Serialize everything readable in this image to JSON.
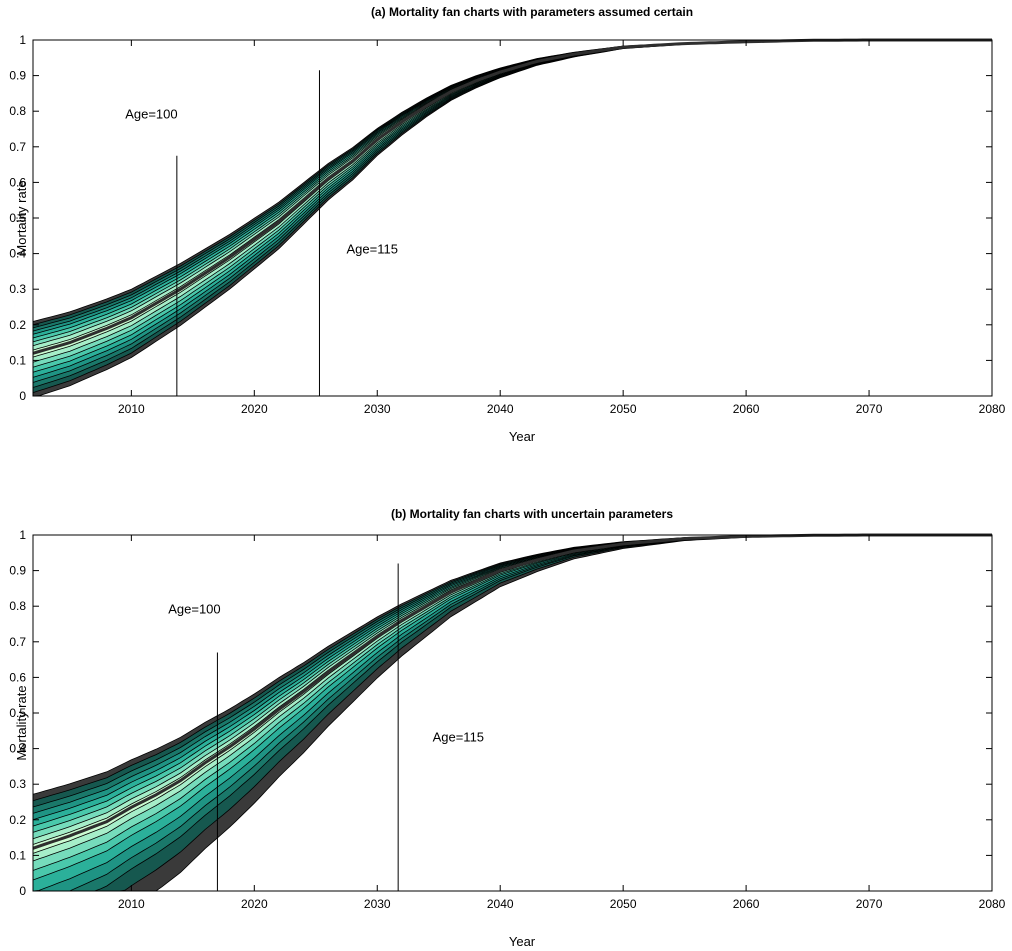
{
  "chart_data": [
    {
      "type": "area",
      "title": "(a) Mortality fan charts with parameters assumed certain",
      "xlabel": "Year",
      "ylabel": "Mortality rate",
      "xlim": [
        2002,
        2080
      ],
      "ylim": [
        0,
        1
      ],
      "xticks": [
        2010,
        2020,
        2030,
        2040,
        2050,
        2060,
        2070,
        2080
      ],
      "yticks": [
        0,
        0.1,
        0.2,
        0.3,
        0.4,
        0.5,
        0.6,
        0.7,
        0.8,
        0.9,
        1
      ],
      "grid": false,
      "median": {
        "x": [
          2002,
          2005,
          2008,
          2010,
          2012,
          2014,
          2016,
          2018,
          2020,
          2022,
          2024,
          2026,
          2028,
          2030,
          2032,
          2034,
          2036,
          2038,
          2040,
          2043,
          2046,
          2050,
          2055,
          2060,
          2065,
          2070,
          2080
        ],
        "y": [
          0.12,
          0.15,
          0.19,
          0.22,
          0.26,
          0.3,
          0.345,
          0.39,
          0.44,
          0.49,
          0.55,
          0.61,
          0.66,
          0.72,
          0.77,
          0.815,
          0.855,
          0.885,
          0.91,
          0.94,
          0.96,
          0.98,
          0.99,
          0.995,
          0.999,
          1.0,
          1.0
        ]
      },
      "bands": {
        "upper_offsets": [
          0.005,
          0.012,
          0.018,
          0.024,
          0.03,
          0.035,
          0.04,
          0.045,
          0.05
        ],
        "lower_offsets": [
          0.006,
          0.014,
          0.022,
          0.03,
          0.038,
          0.046,
          0.054,
          0.062,
          0.07
        ],
        "colors": [
          "#3a3a3a",
          "#16584f",
          "#1a786a",
          "#1f9484",
          "#2bb09a",
          "#4ac8ab",
          "#76dcbc",
          "#a6eec9",
          "#ccfcd2"
        ]
      },
      "annotations": [
        {
          "text": "Age=100",
          "line_x": 2013.7,
          "line_ymin": 0,
          "line_ymax": 0.675,
          "label_x": 2009.5,
          "label_y": 0.78
        },
        {
          "text": "Age=115",
          "line_x": 2025.3,
          "line_ymin": 0,
          "line_ymax": 0.915,
          "label_x": 2027.5,
          "label_y": 0.4
        }
      ]
    },
    {
      "type": "area",
      "title": "(b) Mortality fan charts with uncertain parameters",
      "xlabel": "Year",
      "ylabel": "Mortality rate",
      "xlim": [
        2002,
        2080
      ],
      "ylim": [
        0,
        1
      ],
      "xticks": [
        2010,
        2020,
        2030,
        2040,
        2050,
        2060,
        2070,
        2080
      ],
      "yticks": [
        0,
        0.1,
        0.2,
        0.3,
        0.4,
        0.5,
        0.6,
        0.7,
        0.8,
        0.9,
        1
      ],
      "grid": false,
      "median": {
        "x": [
          2002,
          2005,
          2008,
          2010,
          2012,
          2014,
          2016,
          2018,
          2020,
          2022,
          2024,
          2026,
          2028,
          2030,
          2032,
          2034,
          2036,
          2038,
          2040,
          2043,
          2046,
          2050,
          2055,
          2060,
          2065,
          2070,
          2080
        ],
        "y": [
          0.12,
          0.155,
          0.195,
          0.235,
          0.27,
          0.31,
          0.36,
          0.405,
          0.455,
          0.51,
          0.56,
          0.615,
          0.665,
          0.715,
          0.76,
          0.8,
          0.84,
          0.87,
          0.9,
          0.93,
          0.955,
          0.975,
          0.99,
          0.996,
          0.999,
          1.0,
          1.0
        ]
      },
      "bands": {
        "upper_offsets": [
          0.006,
          0.015,
          0.025,
          0.035,
          0.045,
          0.055,
          0.065,
          0.075,
          0.085
        ],
        "lower_offsets": [
          0.008,
          0.02,
          0.035,
          0.05,
          0.07,
          0.09,
          0.11,
          0.14,
          0.18
        ],
        "colors": [
          "#3a3a3a",
          "#16584f",
          "#1a786a",
          "#1f9484",
          "#2bb09a",
          "#4ac8ab",
          "#76dcbc",
          "#a6eec9",
          "#ccfcd2"
        ]
      },
      "annotations": [
        {
          "text": "Age=100",
          "line_x": 2017,
          "line_ymin": 0,
          "line_ymax": 0.67,
          "label_x": 2013,
          "label_y": 0.78
        },
        {
          "text": "Age=115",
          "line_x": 2031.7,
          "line_ymin": 0,
          "line_ymax": 0.92,
          "label_x": 2034.5,
          "label_y": 0.42
        }
      ]
    }
  ]
}
